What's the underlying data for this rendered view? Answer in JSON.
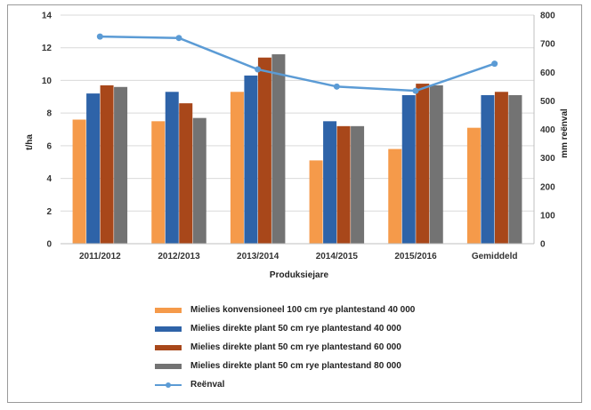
{
  "chart_data": {
    "type": "bar",
    "categories": [
      "2011/2012",
      "2012/2013",
      "2013/2014",
      "2014/2015",
      "2015/2016",
      "Gemiddeld"
    ],
    "xlabel": "Produksiejare",
    "ylabel": "t/ha",
    "y2label": "mm reënval",
    "ylim": [
      0,
      14
    ],
    "y2lim": [
      0,
      800
    ],
    "yticks": [
      "0",
      "2",
      "4",
      "6",
      "8",
      "10",
      "12",
      "14"
    ],
    "y2ticks": [
      "0",
      "100",
      "200",
      "300",
      "400",
      "500",
      "600",
      "700",
      "800"
    ],
    "grid": true,
    "legend_position": "bottom",
    "series": [
      {
        "name": "Mielies konvensioneel 100 cm rye plantestand 40 000",
        "type": "bar",
        "color": "#f59a4a",
        "values": [
          7.6,
          7.5,
          9.3,
          5.1,
          5.8,
          7.1
        ]
      },
      {
        "name": "Mielies direkte plant 50 cm rye plantestand 40 000",
        "type": "bar",
        "color": "#2e63a8",
        "values": [
          9.2,
          9.3,
          10.3,
          7.5,
          9.1,
          9.1
        ]
      },
      {
        "name": "Mielies direkte plant 50 cm rye plantestand 60 000",
        "type": "bar",
        "color": "#a8471a",
        "values": [
          9.7,
          8.6,
          11.4,
          7.2,
          9.8,
          9.3
        ]
      },
      {
        "name": "Mielies direkte plant 50 cm rye plantestand 80 000",
        "type": "bar",
        "color": "#737373",
        "values": [
          9.6,
          7.7,
          11.6,
          7.2,
          9.7,
          9.1
        ]
      },
      {
        "name": "Reënval",
        "type": "line",
        "axis": "right",
        "color": "#5b9bd5",
        "values": [
          725,
          720,
          610,
          550,
          535,
          630
        ]
      }
    ]
  }
}
